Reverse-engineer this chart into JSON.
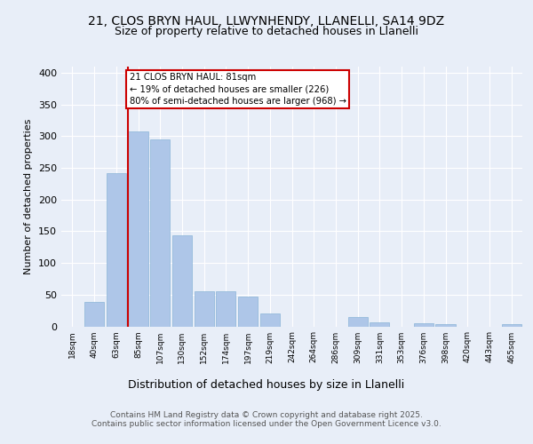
{
  "title": "21, CLOS BRYN HAUL, LLWYNHENDY, LLANELLI, SA14 9DZ",
  "subtitle": "Size of property relative to detached houses in Llanelli",
  "xlabel": "Distribution of detached houses by size in Llanelli",
  "ylabel": "Number of detached properties",
  "footer_line1": "Contains HM Land Registry data © Crown copyright and database right 2025.",
  "footer_line2": "Contains public sector information licensed under the Open Government Licence v3.0.",
  "annotation_line1": "21 CLOS BRYN HAUL: 81sqm",
  "annotation_line2": "← 19% of detached houses are smaller (226)",
  "annotation_line3": "80% of semi-detached houses are larger (968) →",
  "bar_labels": [
    "18sqm",
    "40sqm",
    "63sqm",
    "85sqm",
    "107sqm",
    "130sqm",
    "152sqm",
    "174sqm",
    "197sqm",
    "219sqm",
    "242sqm",
    "264sqm",
    "286sqm",
    "309sqm",
    "331sqm",
    "353sqm",
    "376sqm",
    "398sqm",
    "420sqm",
    "443sqm",
    "465sqm"
  ],
  "bar_values": [
    0,
    38,
    242,
    307,
    295,
    143,
    55,
    55,
    47,
    20,
    0,
    0,
    0,
    15,
    7,
    0,
    5,
    3,
    0,
    0,
    3
  ],
  "bar_color": "#aec6e8",
  "bar_edge_color": "#8ab4d8",
  "vline_x_index": 3,
  "vline_color": "#cc0000",
  "background_color": "#e8eef8",
  "plot_background_color": "#e8eef8",
  "grid_color": "#ffffff",
  "ylim": [
    0,
    410
  ],
  "yticks": [
    0,
    50,
    100,
    150,
    200,
    250,
    300,
    350,
    400
  ]
}
